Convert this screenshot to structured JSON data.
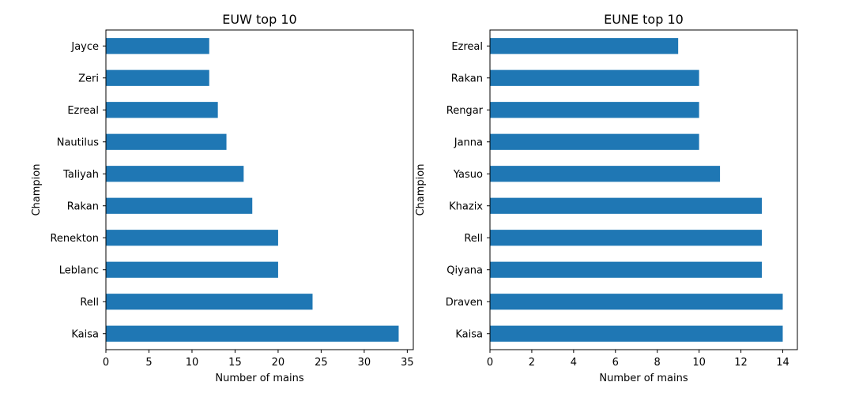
{
  "chart_data": [
    {
      "type": "bar",
      "orientation": "horizontal",
      "title": "EUW top 10",
      "xlabel": "Number of mains",
      "ylabel": "Champion",
      "categories": [
        "Kaisa",
        "Rell",
        "Leblanc",
        "Renekton",
        "Rakan",
        "Taliyah",
        "Nautilus",
        "Ezreal",
        "Zeri",
        "Jayce"
      ],
      "values": [
        34,
        24,
        20,
        20,
        17,
        16,
        14,
        13,
        12,
        12
      ],
      "xlim": [
        0,
        35.7
      ],
      "xticks": [
        0,
        5,
        10,
        15,
        20,
        25,
        30,
        35
      ],
      "bar_color": "#1f77b4",
      "grid": false,
      "legend": "none"
    },
    {
      "type": "bar",
      "orientation": "horizontal",
      "title": "EUNE top 10",
      "xlabel": "Number of mains",
      "ylabel": "Champion",
      "categories": [
        "Kaisa",
        "Draven",
        "Qiyana",
        "Rell",
        "Khazix",
        "Yasuo",
        "Janna",
        "Rengar",
        "Rakan",
        "Ezreal"
      ],
      "values": [
        14,
        14,
        13,
        13,
        13,
        11,
        10,
        10,
        10,
        9
      ],
      "xlim": [
        0,
        14.7
      ],
      "xticks": [
        0,
        2,
        4,
        6,
        8,
        10,
        12,
        14
      ],
      "bar_color": "#1f77b4",
      "grid": false,
      "legend": "none"
    }
  ]
}
